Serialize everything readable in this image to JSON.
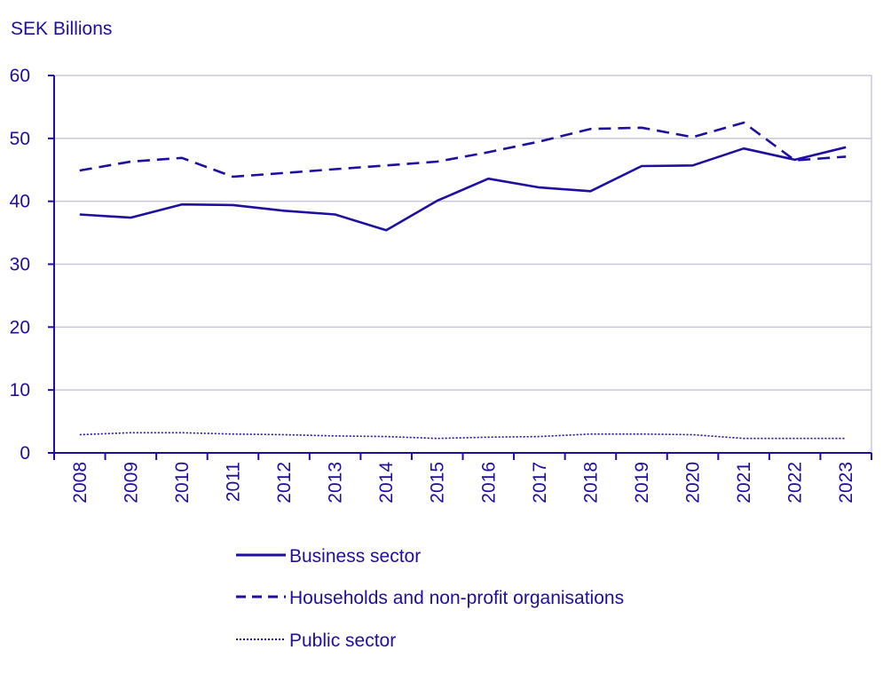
{
  "chart_data": {
    "type": "line",
    "ylabel": "SEK Billions",
    "xlabel": "",
    "categories": [
      "2008",
      "2009",
      "2010",
      "2011",
      "2012",
      "2013",
      "2014",
      "2015",
      "2016",
      "2017",
      "2018",
      "2019",
      "2020",
      "2021",
      "2022",
      "2023"
    ],
    "ylim": [
      0,
      60
    ],
    "yticks": [
      0,
      10,
      20,
      30,
      40,
      50,
      60
    ],
    "grid": true,
    "legend_position": "bottom",
    "colors": {
      "line": "#1e0fa0",
      "grid": "#c8c8d8",
      "text": "#1e0fa0"
    },
    "series": [
      {
        "name": "Business sector",
        "style": "solid",
        "values": [
          37.9,
          37.4,
          39.5,
          39.4,
          38.5,
          37.9,
          35.4,
          40.1,
          43.6,
          42.2,
          41.6,
          45.6,
          45.7,
          48.4,
          46.6,
          48.6
        ]
      },
      {
        "name": "Households and non-profit organisations",
        "style": "dashed",
        "values": [
          44.9,
          46.3,
          46.9,
          43.9,
          44.5,
          45.1,
          45.7,
          46.3,
          47.8,
          49.5,
          51.5,
          51.7,
          50.2,
          52.5,
          46.5,
          47.1
        ]
      },
      {
        "name": "Public sector",
        "style": "dotted",
        "values": [
          2.9,
          3.2,
          3.2,
          3.0,
          2.9,
          2.7,
          2.6,
          2.3,
          2.5,
          2.6,
          3.0,
          3.0,
          2.9,
          2.3,
          2.3,
          2.3
        ]
      }
    ]
  }
}
